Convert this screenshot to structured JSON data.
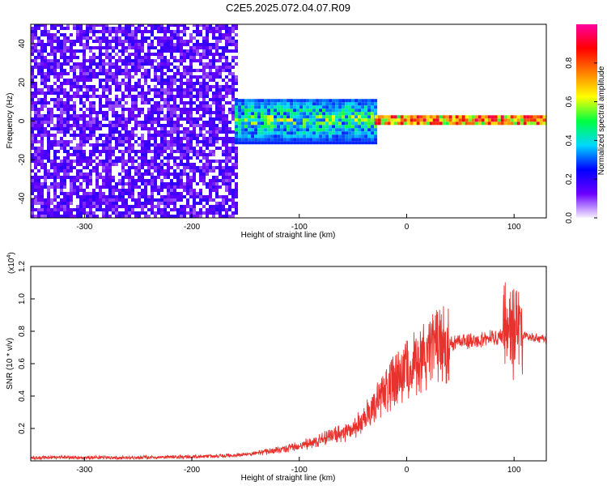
{
  "title": "C2E5.2025.072.04.07.R09",
  "chart_data": [
    {
      "type": "heatmap",
      "xlabel": "Height of straight line (km)",
      "ylabel": "Frequency (Hz)",
      "xlim": [
        -350,
        130
      ],
      "ylim": [
        -50,
        50
      ],
      "x_ticks": [
        -300,
        -200,
        -100,
        0,
        100
      ],
      "y_ticks": [
        -40,
        -20,
        0,
        20,
        40
      ],
      "colorbar": {
        "label": "Normalized spectral amplitude",
        "range": [
          0,
          1
        ],
        "ticks": [
          "0.0",
          "0.2",
          "0.4",
          "0.6",
          "0.8"
        ],
        "colors": [
          "#f6f0ff",
          "#6a00ff",
          "#0000ff",
          "#00d8ff",
          "#00ff40",
          "#ffff00",
          "#ff8000",
          "#ff0000",
          "#ff00a0"
        ]
      },
      "regions": [
        {
          "x_range": [
            -350,
            -160
          ],
          "freq_range": [
            -50,
            50
          ],
          "amplitude": 0.12,
          "pattern": "broadband noise"
        },
        {
          "x_range": [
            -160,
            -30
          ],
          "freq_range": [
            -12,
            10
          ],
          "amplitude": 0.45,
          "pattern": "band near 0 Hz"
        },
        {
          "x_range": [
            -30,
            130
          ],
          "freq_range": [
            -2,
            2
          ],
          "amplitude": 0.9,
          "pattern": "narrow line near 0 Hz"
        }
      ]
    },
    {
      "type": "line",
      "xlabel": "Height of straight line (km)",
      "ylabel": "SNR (10 * v/v)",
      "y_multiplier": "(x10",
      "y_multiplier_exp": "4",
      "xlim": [
        -350,
        130
      ],
      "ylim": [
        0,
        1.2
      ],
      "x_ticks": [
        -300,
        -200,
        -100,
        0,
        100
      ],
      "y_ticks": [
        "0.2",
        "0.4",
        "0.6",
        "0.8",
        "1.0",
        "1.2"
      ],
      "series_color": "#e8322d",
      "series": [
        {
          "x": [
            -350,
            -300,
            -250,
            -200,
            -175,
            -150,
            -125,
            -100,
            -90,
            -80,
            -70,
            -60,
            -50,
            -40,
            -35,
            -30,
            -25,
            -20,
            -15,
            -10,
            -5,
            0,
            10,
            20,
            30,
            40,
            50,
            60,
            70,
            80,
            90,
            95,
            100,
            103,
            106,
            110,
            115,
            120,
            130
          ],
          "y": [
            0.02,
            0.02,
            0.02,
            0.025,
            0.03,
            0.04,
            0.06,
            0.09,
            0.11,
            0.13,
            0.15,
            0.17,
            0.2,
            0.25,
            0.3,
            0.35,
            0.4,
            0.43,
            0.47,
            0.5,
            0.53,
            0.56,
            0.62,
            0.67,
            0.7,
            0.72,
            0.73,
            0.74,
            0.75,
            0.76,
            0.77,
            0.78,
            0.8,
            0.85,
            0.75,
            0.78,
            0.76,
            0.76,
            0.75
          ]
        }
      ]
    }
  ]
}
